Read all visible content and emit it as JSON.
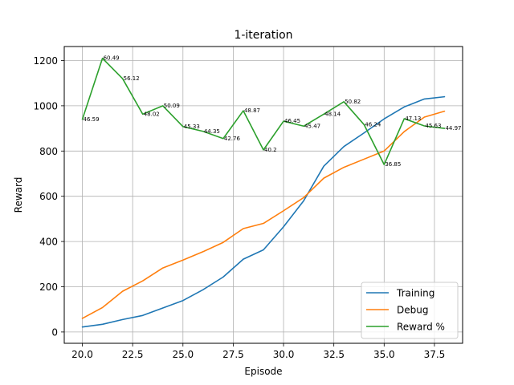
{
  "chart_data": {
    "type": "line",
    "title": "1-iteration",
    "xlabel": "Episode",
    "ylabel": "Reward",
    "xlim": [
      19.1,
      38.9
    ],
    "ylim": [
      -50,
      1262
    ],
    "grid": true,
    "legend_position": "lower-right",
    "x": [
      20,
      21,
      22,
      23,
      24,
      25,
      26,
      27,
      28,
      29,
      30,
      31,
      32,
      33,
      34,
      35,
      36,
      37,
      38
    ],
    "x_ticks": [
      20.0,
      22.5,
      25.0,
      27.5,
      30.0,
      32.5,
      35.0,
      37.5
    ],
    "x_tick_labels": [
      "20.0",
      "22.5",
      "25.0",
      "27.5",
      "30.0",
      "32.5",
      "35.0",
      "37.5"
    ],
    "y_ticks": [
      0,
      200,
      400,
      600,
      800,
      1000,
      1200
    ],
    "y_tick_labels": [
      "0",
      "200",
      "400",
      "600",
      "800",
      "1000",
      "1200"
    ],
    "series": [
      {
        "name": "Training",
        "color": "#1f77b4",
        "values": [
          22,
          34,
          55,
          73,
          106,
          139,
          187,
          243,
          322,
          363,
          465,
          580,
          733,
          820,
          880,
          942,
          995,
          1030,
          1040
        ]
      },
      {
        "name": "Debug",
        "color": "#ff7f0e",
        "values": [
          60,
          108,
          180,
          226,
          283,
          318,
          355,
          396,
          457,
          480,
          536,
          594,
          680,
          728,
          764,
          800,
          886,
          950,
          976
        ]
      },
      {
        "name": "Reward %",
        "color": "#2ca02c",
        "values": [
          940,
          1210,
          1120,
          963,
          1000,
          908,
          887,
          855,
          978,
          805,
          932,
          910,
          963,
          1018,
          917,
          740,
          943,
          911,
          900
        ],
        "point_labels": [
          "46.59",
          "60.49",
          "56.12",
          "48.02",
          "50.09",
          "45.33",
          "44.35",
          "42.76",
          "48.87",
          "40.2",
          "46.45",
          "45.47",
          "48.14",
          "50.82",
          "46.24",
          "36.85",
          "47.13",
          "45.63",
          "44.97"
        ]
      }
    ]
  }
}
